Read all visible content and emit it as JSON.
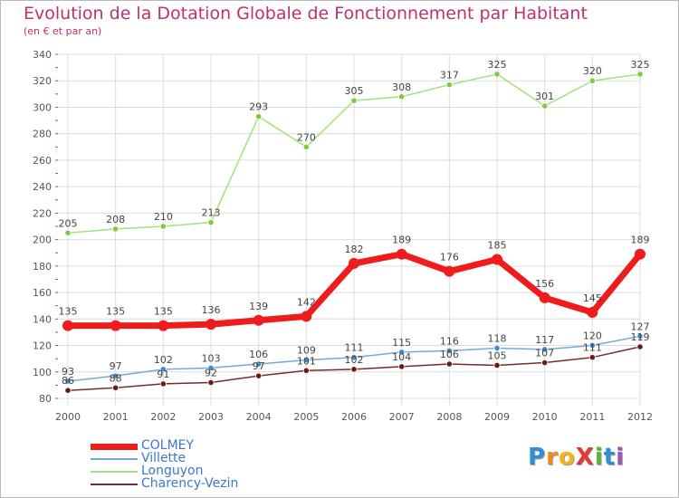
{
  "title": "Evolution de la Dotation Globale de Fonctionnement par Habitant",
  "subtitle": "(en € et par an)",
  "logo": {
    "text": "ProXiti",
    "letters": [
      {
        "char": "P",
        "color": "#2e8fd6"
      },
      {
        "char": "r",
        "color": "#f08a1d"
      },
      {
        "char": "o",
        "color": "#f5b31b"
      },
      {
        "char": "X",
        "color": "#e53935"
      },
      {
        "char": "i",
        "color": "#5cb531"
      },
      {
        "char": "t",
        "color": "#2e8fd6"
      },
      {
        "char": "i",
        "color": "#9b59b6"
      }
    ]
  },
  "chart_data": {
    "type": "line",
    "categories": [
      "2000",
      "2001",
      "2002",
      "2003",
      "2004",
      "2005",
      "2006",
      "2007",
      "2008",
      "2009",
      "2010",
      "2011",
      "2012"
    ],
    "ylim": [
      80,
      340
    ],
    "yticks": [
      80,
      100,
      120,
      140,
      160,
      180,
      200,
      220,
      240,
      260,
      280,
      300,
      320,
      340
    ],
    "grid": true,
    "legend_position": "bottom-left",
    "series": [
      {
        "name": "COLMEY",
        "color": "#ee1c1c",
        "marker_color": "#ee1c1c",
        "width": 7,
        "show_labels": true,
        "values": [
          135,
          135,
          135,
          136,
          139,
          142,
          182,
          189,
          176,
          185,
          156,
          145,
          189
        ]
      },
      {
        "name": "Villette",
        "color": "#7aa8d6",
        "marker_color": "#3e8bcf",
        "width": 1.5,
        "show_labels": true,
        "values": [
          93,
          97,
          102,
          103,
          106,
          109,
          111,
          115,
          116,
          118,
          117,
          120,
          127
        ]
      },
      {
        "name": "Longuyon",
        "color": "#a5e07e",
        "marker_color": "#7ecb3d",
        "width": 1.5,
        "show_labels": true,
        "values": [
          205,
          208,
          210,
          213,
          293,
          270,
          305,
          308,
          317,
          325,
          301,
          320,
          325
        ]
      },
      {
        "name": "Charency-Vezin",
        "color": "#7a2a2a",
        "marker_color": "#6b1a1a",
        "width": 1.5,
        "show_labels": true,
        "values": [
          86,
          88,
          91,
          92,
          97,
          101,
          102,
          104,
          106,
          105,
          107,
          111,
          119
        ]
      }
    ]
  }
}
